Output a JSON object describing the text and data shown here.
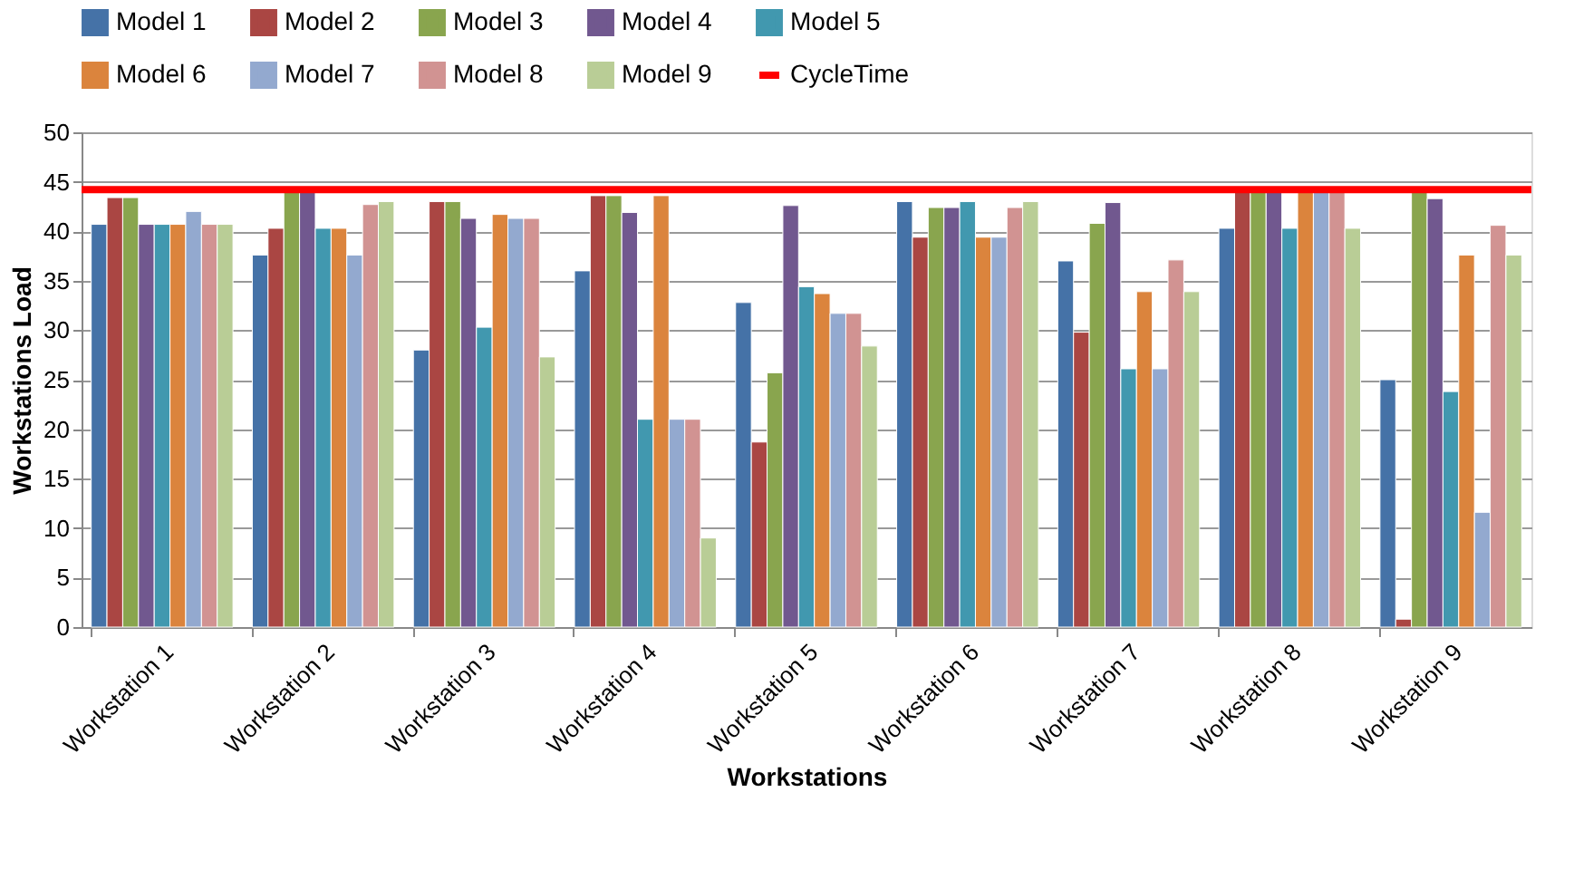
{
  "chart_data": {
    "type": "bar",
    "xlabel": "Workstations",
    "ylabel": "Workstations Load",
    "categories": [
      "Workstation 1",
      "Workstation 2",
      "Workstation 3",
      "Workstation 4",
      "Workstation 5",
      "Workstation 6",
      "Workstation 7",
      "Workstation 8",
      "Workstation 9"
    ],
    "series": [
      {
        "name": "Model 1",
        "color": "#4572a7",
        "values": [
          40.7,
          37.6,
          28.0,
          36.0,
          32.8,
          43.0,
          37.0,
          40.3,
          25.0
        ]
      },
      {
        "name": "Model 2",
        "color": "#aa4643",
        "values": [
          43.4,
          40.3,
          43.0,
          43.6,
          18.7,
          39.4,
          29.8,
          44.2,
          0.8
        ]
      },
      {
        "name": "Model 3",
        "color": "#89a54e",
        "values": [
          43.4,
          44.2,
          43.0,
          43.6,
          25.7,
          42.4,
          40.8,
          44.2,
          44.2
        ]
      },
      {
        "name": "Model 4",
        "color": "#71588f",
        "values": [
          40.7,
          44.2,
          41.3,
          41.9,
          42.6,
          42.4,
          42.9,
          44.2,
          43.3
        ]
      },
      {
        "name": "Model 5",
        "color": "#4198af",
        "values": [
          40.7,
          40.3,
          30.3,
          21.0,
          34.4,
          43.0,
          26.1,
          40.3,
          23.8
        ]
      },
      {
        "name": "Model 6",
        "color": "#db843d",
        "values": [
          40.7,
          40.3,
          41.7,
          43.6,
          33.7,
          39.4,
          33.9,
          44.2,
          37.6
        ]
      },
      {
        "name": "Model 7",
        "color": "#93a9cf",
        "values": [
          42.0,
          37.6,
          41.3,
          21.0,
          31.7,
          39.4,
          26.1,
          44.2,
          11.6
        ]
      },
      {
        "name": "Model 8",
        "color": "#d19392",
        "values": [
          40.7,
          42.7,
          41.3,
          21.0,
          31.7,
          42.4,
          37.1,
          44.2,
          40.6
        ]
      },
      {
        "name": "Model 9",
        "color": "#b9cd96",
        "values": [
          40.7,
          43.0,
          27.3,
          9.0,
          28.4,
          43.0,
          33.9,
          40.3,
          37.6
        ]
      }
    ],
    "ref_lines": [
      {
        "axis": "y",
        "value": 44.2,
        "label": "CycleTime",
        "color": "#ff0000"
      }
    ],
    "ylim": [
      0,
      50
    ],
    "yticks": [
      0,
      5,
      10,
      15,
      20,
      25,
      30,
      35,
      40,
      45,
      50
    ],
    "grid": "y",
    "legend": "top"
  }
}
